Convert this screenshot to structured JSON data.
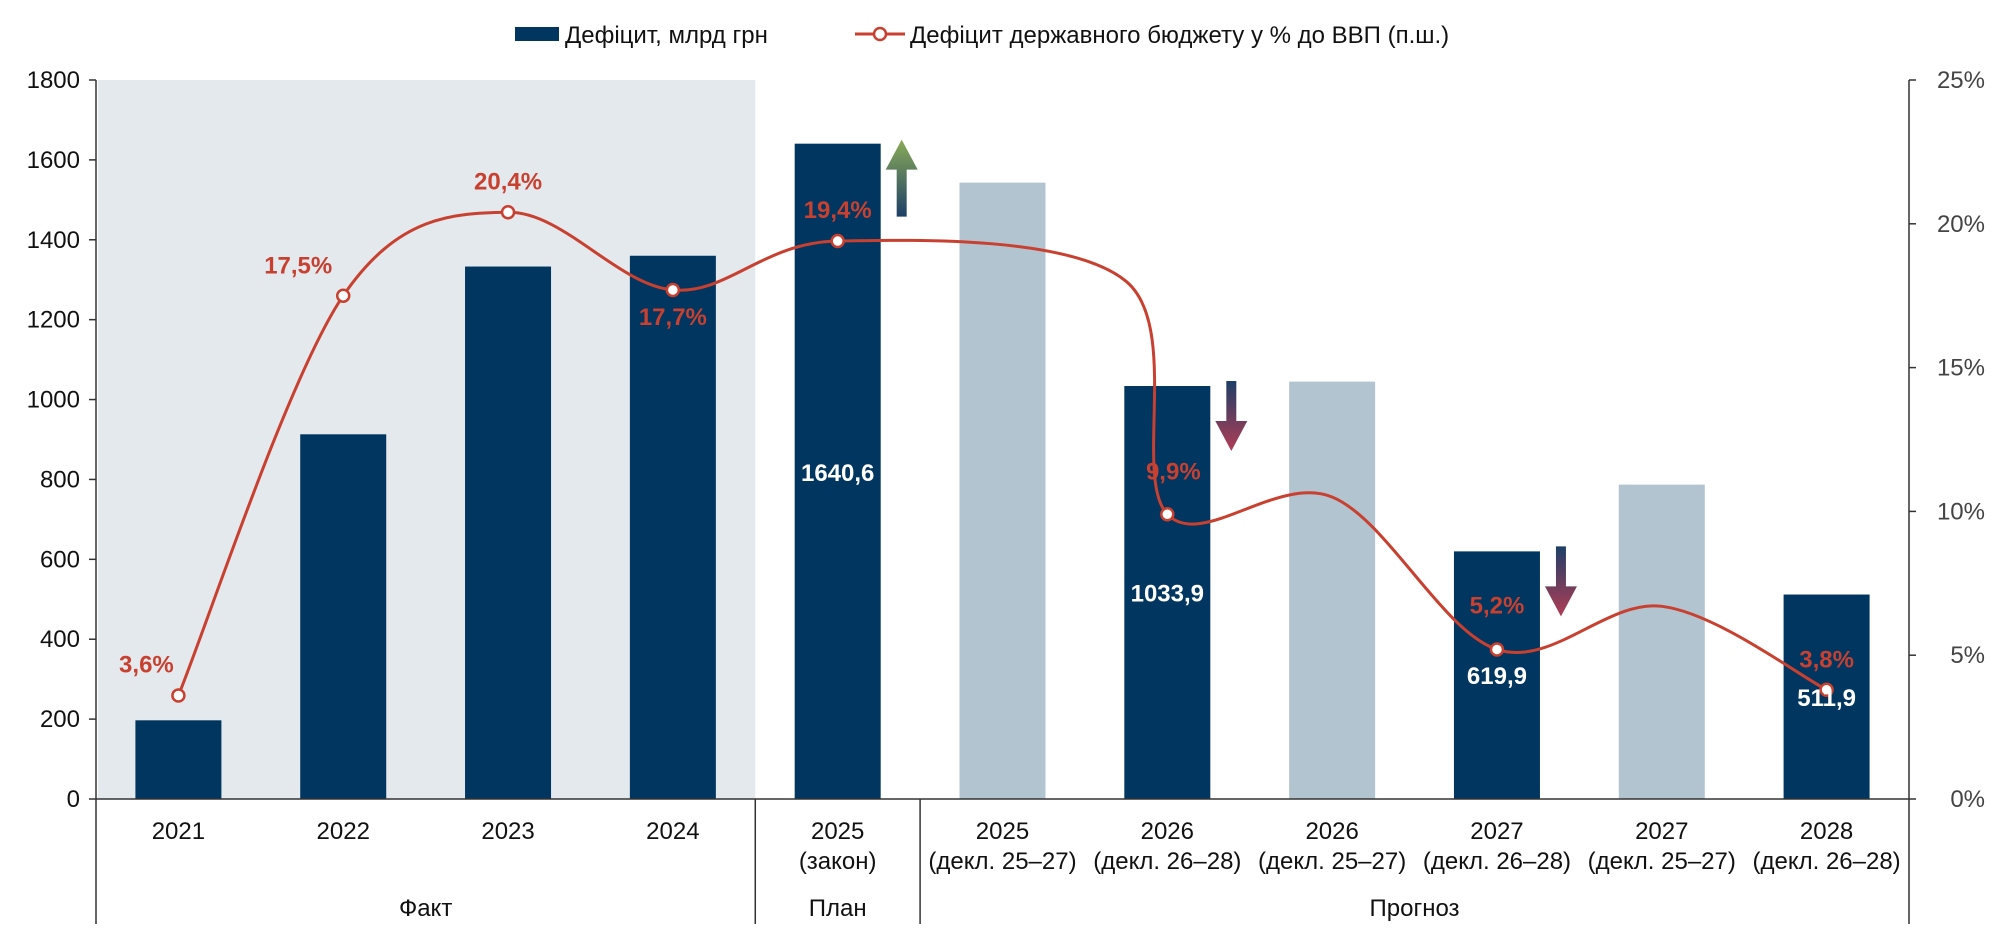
{
  "chart_data": {
    "type": "bar",
    "legend": {
      "position": "top-center",
      "bar_series_name": "Дефіцит, млрд грн",
      "line_series_name": "Дефіцит державного бюджету у % до ВВП (п.ш.)"
    },
    "categories": [
      {
        "year": "2021",
        "sub": ""
      },
      {
        "year": "2022",
        "sub": ""
      },
      {
        "year": "2023",
        "sub": ""
      },
      {
        "year": "2024",
        "sub": ""
      },
      {
        "year": "2025",
        "sub": "(закон)"
      },
      {
        "year": "2025",
        "sub": "(декл. 25–27)"
      },
      {
        "year": "2026",
        "sub": "(декл. 26–28)"
      },
      {
        "year": "2026",
        "sub": "(декл. 25–27)"
      },
      {
        "year": "2027",
        "sub": "(декл. 26–28)"
      },
      {
        "year": "2027",
        "sub": "(декл. 25–27)"
      },
      {
        "year": "2028",
        "sub": "(декл. 26–28)"
      }
    ],
    "groups": [
      {
        "label": "Факт",
        "span": [
          0,
          3
        ]
      },
      {
        "label": "План",
        "span": [
          4,
          4
        ]
      },
      {
        "label": "Прогноз",
        "span": [
          5,
          10
        ]
      }
    ],
    "bar_values": [
      197,
      913,
      1333,
      1360,
      1640.6,
      1543,
      1033.9,
      1045,
      619.9,
      787,
      511.9
    ],
    "bar_styles": [
      "dark",
      "dark",
      "dark",
      "dark",
      "dark",
      "light",
      "dark",
      "light",
      "dark",
      "light",
      "dark"
    ],
    "bar_labels": [
      "",
      "",
      "",
      "",
      "1640,6",
      "",
      "1033,9",
      "",
      "619,9",
      "",
      "511,9"
    ],
    "line_points": [
      {
        "index": 0,
        "value": 3.6,
        "label": "3,6%"
      },
      {
        "index": 1,
        "value": 17.5,
        "label": "17,5%"
      },
      {
        "index": 2,
        "value": 20.4,
        "label": "20,4%"
      },
      {
        "index": 3,
        "value": 17.7,
        "label": "17,7%"
      },
      {
        "index": 4,
        "value": 19.4,
        "label": "19,4%"
      },
      {
        "index": 6,
        "value": 9.9,
        "label": "9,9%"
      },
      {
        "index": 8,
        "value": 5.2,
        "label": "5,2%"
      },
      {
        "index": 10,
        "value": 3.8,
        "label": "3,8%"
      }
    ],
    "line_curve_guides": [
      {
        "x": 5.75,
        "value": 18.0
      },
      {
        "x": 7.0,
        "value": 10.5
      },
      {
        "x": 9.0,
        "value": 6.7
      }
    ],
    "left_axis": {
      "ylim": [
        0,
        1800
      ],
      "ticks": [
        "0",
        "200",
        "400",
        "600",
        "800",
        "1000",
        "1200",
        "1400",
        "1600",
        "1800"
      ]
    },
    "right_axis": {
      "ylim": [
        0,
        25
      ],
      "ticks": [
        "0%",
        "5%",
        "10%",
        "15%",
        "20%",
        "25%"
      ]
    },
    "shaded_region": {
      "from_index": 0,
      "to_index": 3
    },
    "arrows": [
      {
        "index": 4,
        "direction": "up"
      },
      {
        "index": 6,
        "direction": "down"
      },
      {
        "index": 8,
        "direction": "down"
      }
    ],
    "grid": false,
    "colors": {
      "dark_bar": "#003660",
      "light_bar": "#b3c4d1",
      "line": "#c8402f",
      "shade": "#e4e9ee",
      "up_arrow": "#8aab58",
      "down_arrow": "#b03d55"
    }
  }
}
